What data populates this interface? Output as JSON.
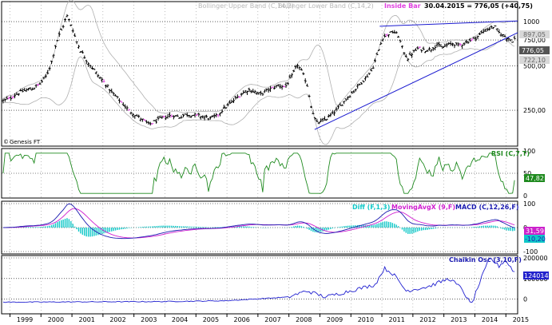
{
  "header": {
    "upper_band_label": "Bollinger Upper Band (C,14,2)",
    "lower_band_label": "Bollinger Lower Band (C,14,2)",
    "inside_bar_label": "Inside Bar",
    "quote": "30.04.2015 = 776,05 (+40,75)"
  },
  "credit": "Genesis FT",
  "colors": {
    "price_bar": "#000000",
    "inside_bar": "#e040e0",
    "bollinger": "#b0b0b0",
    "trendline": "#1a1ad0",
    "rsi": "#1f8a1f",
    "diff_hist": "#10c8c8",
    "movavg": "#d020d0",
    "macd": "#1a1ab0",
    "chaikin": "#2020d0",
    "price_badge": "#555555",
    "rsi_badge": "#1f8a1f",
    "macd_badge": "#cc22cc",
    "macd_badge2": "#10c8c8",
    "chaikin_badge": "#2222cc",
    "upper_badge": "#c8c8c8",
    "lower_badge": "#c8c8c8"
  },
  "chart_data": [
    {
      "type": "ohlc",
      "panel": "price",
      "x_axis_labels": [
        "1999",
        "2000",
        "2001",
        "2002",
        "2003",
        "2004",
        "2005",
        "2006",
        "2007",
        "2008",
        "2009",
        "2010",
        "2011",
        "2012",
        "2013",
        "2014",
        "2015"
      ],
      "x_range": [
        1998.75,
        2015.4
      ],
      "y_scale": "log",
      "ylim": [
        150,
        1300
      ],
      "y_ticks": [
        "1000",
        "750,00",
        "500,00",
        "250,00"
      ],
      "y_tick_values": [
        1000,
        750,
        500,
        250
      ],
      "last_value_label": "776,05",
      "upper_band_value_label": "897,05",
      "lower_band_value_label": "722,10",
      "close_series": [
        [
          1998.8,
          290
        ],
        [
          1999.0,
          300
        ],
        [
          1999.2,
          320
        ],
        [
          1999.4,
          335
        ],
        [
          1999.6,
          345
        ],
        [
          1999.8,
          355
        ],
        [
          2000.0,
          380
        ],
        [
          2000.2,
          430
        ],
        [
          2000.35,
          520
        ],
        [
          2000.5,
          700
        ],
        [
          2000.6,
          800
        ],
        [
          2000.75,
          950
        ],
        [
          2000.85,
          1100
        ],
        [
          2000.95,
          1000
        ],
        [
          2001.05,
          880
        ],
        [
          2001.15,
          750
        ],
        [
          2001.3,
          640
        ],
        [
          2001.5,
          540
        ],
        [
          2001.7,
          480
        ],
        [
          2001.9,
          420
        ],
        [
          2002.1,
          380
        ],
        [
          2002.3,
          330
        ],
        [
          2002.5,
          300
        ],
        [
          2002.7,
          270
        ],
        [
          2002.9,
          245
        ],
        [
          2003.1,
          230
        ],
        [
          2003.3,
          215
        ],
        [
          2003.5,
          200
        ],
        [
          2003.7,
          210
        ],
        [
          2003.9,
          220
        ],
        [
          2004.1,
          228
        ],
        [
          2004.3,
          230
        ],
        [
          2004.5,
          225
        ],
        [
          2004.7,
          235
        ],
        [
          2004.9,
          232
        ],
        [
          2005.1,
          230
        ],
        [
          2005.3,
          225
        ],
        [
          2005.5,
          220
        ],
        [
          2005.7,
          230
        ],
        [
          2005.9,
          255
        ],
        [
          2006.1,
          275
        ],
        [
          2006.3,
          300
        ],
        [
          2006.5,
          325
        ],
        [
          2006.7,
          345
        ],
        [
          2006.9,
          335
        ],
        [
          2007.1,
          320
        ],
        [
          2007.3,
          340
        ],
        [
          2007.5,
          355
        ],
        [
          2007.7,
          370
        ],
        [
          2007.9,
          360
        ],
        [
          2008.1,
          420
        ],
        [
          2008.3,
          510
        ],
        [
          2008.45,
          450
        ],
        [
          2008.6,
          380
        ],
        [
          2008.75,
          260
        ],
        [
          2008.9,
          205
        ],
        [
          2009.1,
          210
        ],
        [
          2009.3,
          225
        ],
        [
          2009.5,
          245
        ],
        [
          2009.7,
          270
        ],
        [
          2009.9,
          305
        ],
        [
          2010.1,
          335
        ],
        [
          2010.3,
          375
        ],
        [
          2010.5,
          415
        ],
        [
          2010.7,
          470
        ],
        [
          2010.9,
          620
        ],
        [
          2011.05,
          780
        ],
        [
          2011.2,
          820
        ],
        [
          2011.4,
          855
        ],
        [
          2011.55,
          800
        ],
        [
          2011.7,
          640
        ],
        [
          2011.85,
          560
        ],
        [
          2012.0,
          610
        ],
        [
          2012.2,
          660
        ],
        [
          2012.4,
          640
        ],
        [
          2012.6,
          650
        ],
        [
          2012.8,
          700
        ],
        [
          2012.95,
          660
        ],
        [
          2013.1,
          690
        ],
        [
          2013.3,
          710
        ],
        [
          2013.5,
          690
        ],
        [
          2013.7,
          720
        ],
        [
          2013.9,
          750
        ],
        [
          2014.1,
          790
        ],
        [
          2014.3,
          860
        ],
        [
          2014.5,
          900
        ],
        [
          2014.65,
          930
        ],
        [
          2014.8,
          840
        ],
        [
          2014.95,
          800
        ],
        [
          2015.1,
          770
        ],
        [
          2015.25,
          740
        ],
        [
          2015.33,
          776.05
        ]
      ]
    },
    {
      "type": "line",
      "panel": "rsi",
      "series_name": "RSI (C,7,T)",
      "y_ticks": [
        "100",
        "50",
        "0"
      ],
      "y_tick_values": [
        100,
        50,
        0
      ],
      "last_value_label": "47,82",
      "last_value": 47.82
    },
    {
      "type": "line+histogram",
      "panel": "macd",
      "series_names": [
        "Diff (F,1,3)",
        "MovingAvgX (9,F)",
        "MACD (C,12,26,F)"
      ],
      "y_ticks": [
        "100",
        "0",
        "-100"
      ],
      "y_tick_values": [
        100,
        0,
        -100
      ],
      "last_value_label": "31,59",
      "diff_value_label": "-10,20",
      "last_value": 31.59,
      "diff_last_value": -10.2
    },
    {
      "type": "line",
      "panel": "chaikin",
      "series_name": "Chaikin Osc (3,10,F)",
      "y_ticks": [
        "200000",
        "100000",
        "0"
      ],
      "y_tick_values": [
        200000,
        100000,
        0
      ],
      "last_value_label": "124014",
      "last_value": 124014
    }
  ]
}
